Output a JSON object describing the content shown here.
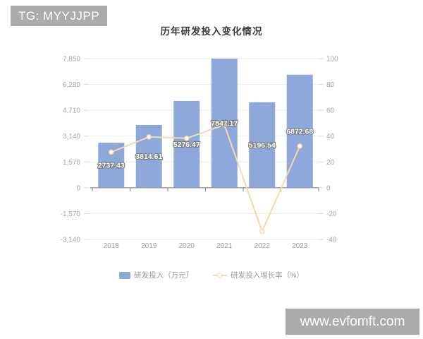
{
  "watermarks": {
    "top_left": "TG: MYYJJPP",
    "bottom_right": "www.evfomft.com"
  },
  "colors": {
    "bar": "#8EA8DB",
    "line": "#F3DCA7",
    "watermark_bg": "#ABABAB",
    "title_text": "#3B3B3B",
    "axis_text": "#A6A6A6",
    "grid_line": "#EBEBEB",
    "axis_line": "#757575",
    "bar_label_fill": "#FFFFFF",
    "bar_label_outline": "#7A7A7A"
  },
  "chart_data": {
    "type": "combo-bar-line",
    "title": "历年研发投入变化情况",
    "categories": [
      "2018",
      "2019",
      "2020",
      "2021",
      "2022",
      "2023"
    ],
    "series": [
      {
        "name": "研发投入（万元）",
        "type": "bar",
        "axis": "left",
        "color": "#8EA8DB",
        "values": [
          2737.43,
          3814.61,
          5276.47,
          7847.17,
          5196.54,
          6872.68
        ],
        "value_labels": [
          "2737.43",
          "3814.61",
          "5276.47",
          "7847.17",
          "5196.54",
          "6872.68"
        ]
      },
      {
        "name": "研发投入增长率（%）",
        "type": "line",
        "axis": "right",
        "color": "#F3DCA7",
        "values": [
          27.6,
          39.35,
          38.32,
          48.72,
          -33.78,
          32.25
        ]
      }
    ],
    "left_axis": {
      "max": 7850,
      "min": -3140,
      "interval": 1570,
      "tick_labels": [
        "7,850",
        "6,280",
        "4,710",
        "3,140",
        "1,570",
        "0",
        "-1,570",
        "-3,140"
      ]
    },
    "right_axis": {
      "max": 100,
      "min": -40,
      "interval": 20,
      "tick_labels": [
        "100",
        "80",
        "60",
        "40",
        "20",
        "0",
        "-20",
        "-40"
      ]
    },
    "grid": true,
    "legend_position": "bottom"
  }
}
